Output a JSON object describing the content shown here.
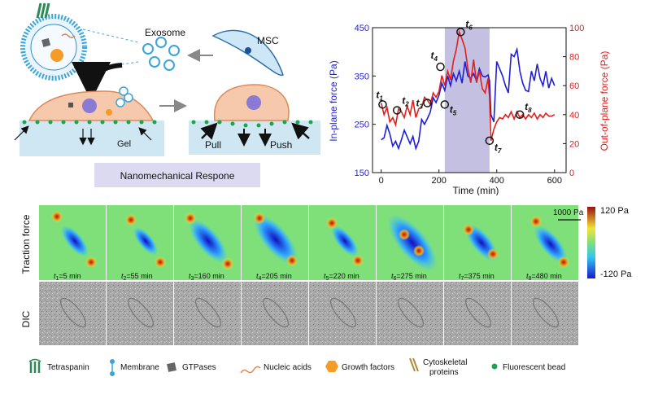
{
  "schematic": {
    "exosome_label": "Exosome",
    "msc_label": "MSC",
    "gel_label": "Gel",
    "pull_label": "Pull",
    "push_label": "Push",
    "response_box": "Nanomechanical Respone"
  },
  "chart_data": {
    "type": "line",
    "xlabel": "Time (min)",
    "ylabel_left": "In-plane force (Pa)",
    "ylabel_right": "Out-of-plane force (Pa)",
    "xlim": [
      -30,
      640
    ],
    "ylim_left": [
      150,
      450
    ],
    "ylim_right": [
      0,
      100
    ],
    "xticks": [
      "0",
      "200",
      "400",
      "600"
    ],
    "yticks_left": [
      "150",
      "250",
      "350",
      "450"
    ],
    "yticks_right": [
      "0",
      "20",
      "40",
      "60",
      "80",
      "100"
    ],
    "shaded_region": [
      220,
      375
    ],
    "colors": {
      "in_plane": "#1f1fd6",
      "out_of_plane": "#e0201e",
      "shade": "#b9b5dc"
    },
    "series": [
      {
        "axis": "left",
        "x": [
          0,
          10,
          20,
          30,
          40,
          50,
          60,
          70,
          80,
          90,
          100,
          110,
          120,
          130,
          140,
          150,
          160,
          170,
          180,
          190,
          200,
          210,
          220,
          230,
          240,
          250,
          260,
          270,
          280,
          290,
          300,
          310,
          320,
          330,
          340,
          350,
          360,
          370,
          375,
          380,
          390,
          400,
          410,
          420,
          430,
          440,
          450,
          460,
          470,
          480,
          490,
          500,
          510,
          520,
          530,
          540,
          550,
          560,
          570,
          580,
          590,
          600
        ],
        "values": [
          218,
          222,
          248,
          230,
          205,
          215,
          200,
          218,
          238,
          224,
          210,
          225,
          200,
          215,
          260,
          250,
          262,
          275,
          305,
          295,
          310,
          335,
          320,
          350,
          330,
          355,
          340,
          360,
          335,
          380,
          350,
          345,
          355,
          340,
          365,
          350,
          348,
          352,
          340,
          270,
          255,
          380,
          365,
          350,
          330,
          315,
          395,
          390,
          405,
          360,
          335,
          320,
          318,
          360,
          340,
          375,
          345,
          330,
          360,
          325,
          345,
          330
        ]
      },
      {
        "axis": "right",
        "x": [
          0,
          10,
          20,
          30,
          40,
          50,
          60,
          70,
          80,
          90,
          100,
          110,
          120,
          130,
          140,
          150,
          160,
          170,
          180,
          190,
          200,
          210,
          220,
          230,
          240,
          250,
          260,
          270,
          280,
          290,
          300,
          310,
          320,
          330,
          340,
          350,
          360,
          370,
          375,
          380,
          390,
          400,
          410,
          420,
          430,
          440,
          450,
          460,
          470,
          480,
          490,
          500,
          510,
          520,
          530,
          540,
          550,
          560,
          570,
          580,
          590,
          600
        ],
        "values": [
          48,
          40,
          45,
          35,
          38,
          33,
          44,
          42,
          38,
          46,
          40,
          50,
          38,
          44,
          45,
          52,
          50,
          47,
          55,
          52,
          56,
          67,
          60,
          70,
          64,
          77,
          85,
          97,
          92,
          86,
          72,
          62,
          78,
          62,
          70,
          58,
          55,
          65,
          52,
          22,
          30,
          35,
          38,
          37,
          40,
          38,
          42,
          37,
          42,
          38,
          40,
          37,
          40,
          38,
          41,
          37,
          40,
          38,
          41,
          39,
          39,
          40
        ]
      }
    ],
    "time_points": [
      {
        "label": "t",
        "sub": "1",
        "x": 5,
        "y": 47
      },
      {
        "label": "t",
        "sub": "2",
        "x": 55,
        "y": 43
      },
      {
        "label": "t",
        "sub": "3",
        "x": 160,
        "y": 48
      },
      {
        "label": "t",
        "sub": "4",
        "x": 205,
        "y": 73
      },
      {
        "label": "t",
        "sub": "5",
        "x": 220,
        "y": 47
      },
      {
        "label": "t",
        "sub": "6",
        "x": 275,
        "y": 97
      },
      {
        "label": "t",
        "sub": "7",
        "x": 375,
        "y": 22
      },
      {
        "label": "t",
        "sub": "8",
        "x": 480,
        "y": 40
      }
    ]
  },
  "panels": {
    "row1_label": "Traction force",
    "row2_label": "DIC",
    "scale_label": "1000 Pa",
    "colorbar_max": "120 Pa",
    "colorbar_min": "-120 Pa",
    "time_labels": [
      {
        "sub": "1",
        "value": "=5 min"
      },
      {
        "sub": "2",
        "value": "=55 min"
      },
      {
        "sub": "3",
        "value": "=160 min"
      },
      {
        "sub": "4",
        "value": "=205 min"
      },
      {
        "sub": "5",
        "value": "=220 min"
      },
      {
        "sub": "6",
        "value": "=275 min"
      },
      {
        "sub": "7",
        "value": "=375 min"
      },
      {
        "sub": "8",
        "value": "=480 min"
      }
    ]
  },
  "legend": {
    "items": [
      {
        "label": "Tetraspanin",
        "icon": "tetraspanin-icon"
      },
      {
        "label": "Membrane",
        "icon": "membrane-icon"
      },
      {
        "label": "GTPases",
        "icon": "gtpase-icon"
      },
      {
        "label": "Nucleic acids",
        "icon": "nucleic-acid-icon"
      },
      {
        "label": "Growth factors",
        "icon": "growth-factor-icon"
      },
      {
        "label": "Cytoskeletal",
        "label2": "proteins",
        "icon": "cytoskeletal-icon"
      },
      {
        "label": "Fluorescent bead",
        "icon": "bead-icon"
      }
    ]
  }
}
